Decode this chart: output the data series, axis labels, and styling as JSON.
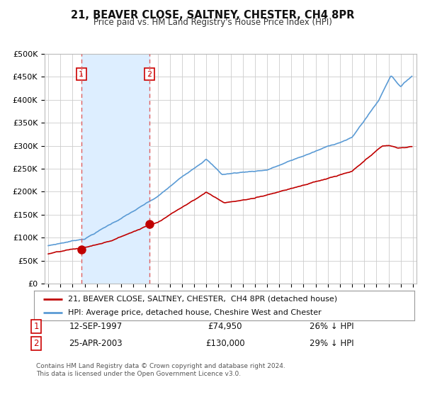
{
  "title": "21, BEAVER CLOSE, SALTNEY, CHESTER, CH4 8PR",
  "subtitle": "Price paid vs. HM Land Registry's House Price Index (HPI)",
  "legend_line1": "21, BEAVER CLOSE, SALTNEY, CHESTER,  CH4 8PR (detached house)",
  "legend_line2": "HPI: Average price, detached house, Cheshire West and Chester",
  "sale1_date": "12-SEP-1997",
  "sale1_price": 74950,
  "sale1_label": "26% ↓ HPI",
  "sale1_year": 1997.72,
  "sale2_date": "25-APR-2003",
  "sale2_price": 130000,
  "sale2_label": "29% ↓ HPI",
  "sale2_year": 2003.32,
  "footnote1": "Contains HM Land Registry data © Crown copyright and database right 2024.",
  "footnote2": "This data is licensed under the Open Government Licence v3.0.",
  "hpi_color": "#5b9bd5",
  "price_color": "#c00000",
  "vline_color": "#e06060",
  "shade_color": "#ddeeff",
  "marker_color": "#c00000",
  "background_color": "#ffffff",
  "grid_color": "#cccccc",
  "ylim": [
    0,
    500000
  ],
  "xlim_start": 1994.7,
  "xlim_end": 2025.3
}
